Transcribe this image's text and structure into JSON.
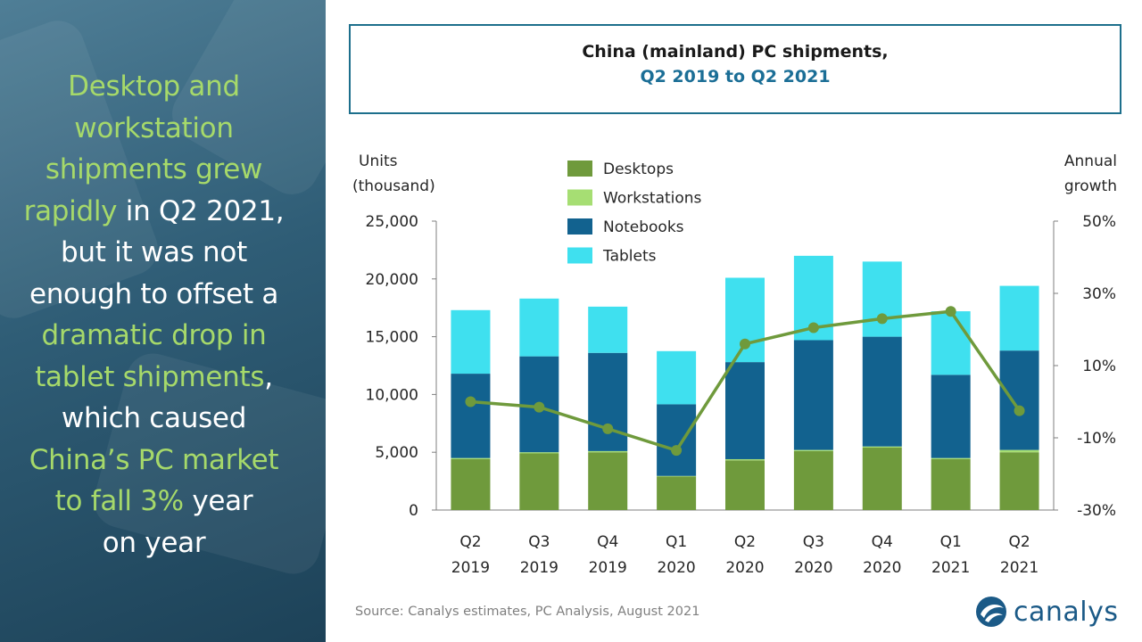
{
  "headline": {
    "lines": [
      [
        {
          "t": "Desktop and",
          "h": true
        }
      ],
      [
        {
          "t": "workstation",
          "h": true
        }
      ],
      [
        {
          "t": "shipments grew",
          "h": true
        }
      ],
      [
        {
          "t": "rapidly",
          "h": true
        },
        {
          "t": " in Q2 2021,",
          "h": false
        }
      ],
      [
        {
          "t": "but it was not",
          "h": false
        }
      ],
      [
        {
          "t": "enough to offset a",
          "h": false
        }
      ],
      [
        {
          "t": "dramatic drop in",
          "h": true
        }
      ],
      [
        {
          "t": "tablet shipments",
          "h": true
        },
        {
          "t": ",",
          "h": false
        }
      ],
      [
        {
          "t": "which caused",
          "h": false
        }
      ],
      [
        {
          "t": "China’s PC market",
          "h": true
        }
      ],
      [
        {
          "t": "to fall 3%",
          "h": true
        },
        {
          "t": " year",
          "h": false
        }
      ],
      [
        {
          "t": "on year",
          "h": false
        }
      ]
    ]
  },
  "source": "Source: Canalys estimates, PC Analysis, August 2021",
  "logo": {
    "text": "canalys",
    "icon": "canalys-logo-icon"
  },
  "colors": {
    "desktops": "#6f9a3c",
    "workstations": "#a6de73",
    "notebooks": "#12628f",
    "tablets": "#3fe0ef",
    "growth_line": "#6f9a3c",
    "highlight_text": "#a6d96a",
    "title_border": "#1d6f8c"
  },
  "chart_data": {
    "type": "bar",
    "stacked": true,
    "title": "China (mainland) PC shipments,",
    "subtitle": "Q2 2019 to Q2 2021",
    "ylabel": [
      "Units",
      "(thousand)"
    ],
    "y2label": [
      "Annual",
      "growth"
    ],
    "ylim": [
      0,
      25000
    ],
    "y_ticks": [
      "25,000",
      "20,000",
      "15,000",
      "10,000",
      "5,000",
      "0"
    ],
    "y2lim": [
      -30,
      50
    ],
    "y2_ticks": [
      "50%",
      "30%",
      "10%",
      "-10%",
      "-30%"
    ],
    "categories": [
      [
        "Q2",
        "2019"
      ],
      [
        "Q3",
        "2019"
      ],
      [
        "Q4",
        "2019"
      ],
      [
        "Q1",
        "2020"
      ],
      [
        "Q2",
        "2020"
      ],
      [
        "Q3",
        "2020"
      ],
      [
        "Q4",
        "2020"
      ],
      [
        "Q1",
        "2021"
      ],
      [
        "Q2",
        "2021"
      ]
    ],
    "series": [
      {
        "name": "Desktops",
        "values": [
          4400,
          4900,
          5000,
          2900,
          4300,
          5100,
          5400,
          4400,
          5000
        ]
      },
      {
        "name": "Workstations",
        "values": [
          100,
          100,
          100,
          50,
          100,
          100,
          100,
          100,
          200
        ]
      },
      {
        "name": "Notebooks",
        "values": [
          7300,
          8300,
          8500,
          6200,
          8400,
          9500,
          9500,
          7200,
          8600
        ]
      },
      {
        "name": "Tablets",
        "values": [
          5500,
          5000,
          4000,
          4600,
          7300,
          7300,
          6500,
          5500,
          5600
        ]
      }
    ],
    "growth_line": {
      "axis": "right",
      "values": [
        0,
        -1.5,
        -7.5,
        -13.5,
        16,
        20.5,
        23,
        25,
        -2.5
      ]
    },
    "legend": [
      "Desktops",
      "Workstations",
      "Notebooks",
      "Tablets"
    ],
    "legend_position": "top-left inside plot",
    "grid": false
  }
}
